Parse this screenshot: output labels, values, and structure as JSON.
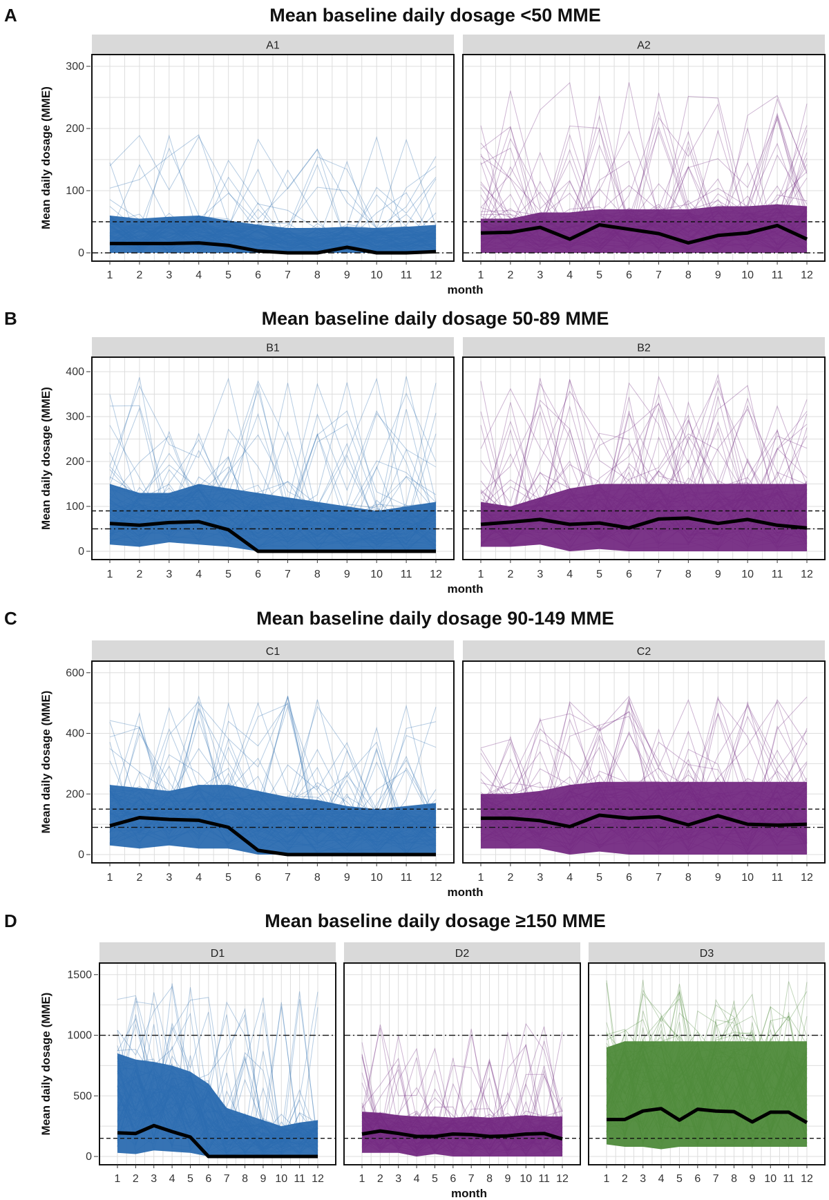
{
  "chart_data": [
    {
      "type": "line",
      "section_letter": "A",
      "title": "Mean baseline daily dosage <50 MME",
      "xlabel": "month",
      "ylabel": "Mean daily dosage (MME)",
      "x": [
        1,
        2,
        3,
        4,
        5,
        6,
        7,
        8,
        9,
        10,
        11,
        12
      ],
      "ylim": [
        0,
        310
      ],
      "yticks": [
        0,
        100,
        200,
        300
      ],
      "reference_lines": [
        {
          "y": 50,
          "style": "dashed"
        },
        {
          "y": 0,
          "style": "dotdash"
        }
      ],
      "panels": [
        {
          "label": "A1",
          "color": "#2b6cb0",
          "band_upper": [
            60,
            55,
            58,
            60,
            52,
            45,
            40,
            40,
            42,
            40,
            42,
            45
          ],
          "band_lower": [
            0,
            0,
            0,
            0,
            0,
            0,
            0,
            0,
            0,
            0,
            0,
            0
          ],
          "spike_max": 190,
          "mean": [
            15,
            15,
            15,
            16,
            12,
            3,
            0,
            0,
            9,
            0,
            0,
            2
          ]
        },
        {
          "label": "A2",
          "color": "#742a82",
          "band_upper": [
            55,
            55,
            65,
            65,
            70,
            70,
            70,
            70,
            75,
            75,
            78,
            75
          ],
          "band_lower": [
            0,
            0,
            0,
            0,
            0,
            0,
            0,
            0,
            0,
            0,
            0,
            0
          ],
          "spike_max": 275,
          "mean": [
            32,
            33,
            41,
            22,
            45,
            38,
            31,
            16,
            28,
            32,
            44,
            22
          ]
        }
      ]
    },
    {
      "type": "line",
      "section_letter": "B",
      "title": "Mean baseline daily dosage 50-89 MME",
      "xlabel": "month",
      "ylabel": "Mean daily dosage (MME)",
      "x": [
        1,
        2,
        3,
        4,
        5,
        6,
        7,
        8,
        9,
        10,
        11,
        12
      ],
      "ylim": [
        0,
        420
      ],
      "yticks": [
        0,
        100,
        200,
        300,
        400
      ],
      "reference_lines": [
        {
          "y": 90,
          "style": "dashed"
        },
        {
          "y": 50,
          "style": "dotdash"
        }
      ],
      "panels": [
        {
          "label": "B1",
          "color": "#2b6cb0",
          "band_upper": [
            150,
            130,
            130,
            150,
            140,
            130,
            120,
            110,
            100,
            90,
            100,
            110
          ],
          "band_lower": [
            15,
            10,
            20,
            15,
            10,
            0,
            0,
            0,
            0,
            0,
            0,
            0
          ],
          "spike_max": 395,
          "mean": [
            62,
            58,
            64,
            66,
            48,
            0,
            0,
            0,
            0,
            0,
            0,
            0
          ]
        },
        {
          "label": "B2",
          "color": "#742a82",
          "band_upper": [
            110,
            100,
            120,
            140,
            150,
            150,
            150,
            150,
            150,
            150,
            150,
            150
          ],
          "band_lower": [
            10,
            10,
            15,
            0,
            5,
            0,
            0,
            0,
            0,
            0,
            0,
            0
          ],
          "spike_max": 395,
          "mean": [
            60,
            65,
            71,
            60,
            63,
            52,
            72,
            74,
            62,
            71,
            58,
            52
          ]
        }
      ]
    },
    {
      "type": "line",
      "section_letter": "C",
      "title": "Mean baseline daily dosage 90-149 MME",
      "xlabel": "month",
      "ylabel": "Mean daily dosage (MME)",
      "x": [
        1,
        2,
        3,
        4,
        5,
        6,
        7,
        8,
        9,
        10,
        11,
        12
      ],
      "ylim": [
        0,
        620
      ],
      "yticks": [
        0,
        200,
        400,
        600
      ],
      "reference_lines": [
        {
          "y": 150,
          "style": "dashed"
        },
        {
          "y": 90,
          "style": "dotdash"
        }
      ],
      "panels": [
        {
          "label": "C1",
          "color": "#2b6cb0",
          "band_upper": [
            230,
            220,
            210,
            230,
            230,
            210,
            190,
            180,
            160,
            150,
            160,
            170
          ],
          "band_lower": [
            30,
            20,
            30,
            20,
            20,
            0,
            0,
            0,
            0,
            0,
            0,
            0
          ],
          "spike_max": 530,
          "mean": [
            95,
            122,
            116,
            113,
            90,
            14,
            0,
            0,
            0,
            0,
            0,
            0
          ]
        },
        {
          "label": "C2",
          "color": "#742a82",
          "band_upper": [
            200,
            200,
            210,
            230,
            240,
            240,
            240,
            240,
            240,
            240,
            240,
            240
          ],
          "band_lower": [
            20,
            20,
            20,
            0,
            10,
            0,
            0,
            0,
            0,
            0,
            0,
            0
          ],
          "spike_max": 530,
          "mean": [
            120,
            120,
            112,
            92,
            130,
            120,
            125,
            98,
            128,
            100,
            97,
            100
          ]
        }
      ]
    },
    {
      "type": "line",
      "section_letter": "D",
      "title": "Mean baseline daily dosage ≥150 MME",
      "xlabel": "month",
      "ylabel": "Mean daily dosage (MME)",
      "x": [
        1,
        2,
        3,
        4,
        5,
        6,
        7,
        8,
        9,
        10,
        11,
        12
      ],
      "ylim": [
        0,
        1550
      ],
      "yticks": [
        0,
        500,
        1000,
        1500
      ],
      "reference_lines": [
        {
          "y": 1000,
          "style": "dotdash"
        },
        {
          "y": 150,
          "style": "dashed"
        }
      ],
      "panels": [
        {
          "label": "D1",
          "color": "#2b6cb0",
          "band_upper": [
            850,
            800,
            780,
            750,
            700,
            600,
            400,
            350,
            300,
            250,
            280,
            300
          ],
          "band_lower": [
            30,
            20,
            50,
            40,
            30,
            0,
            0,
            0,
            0,
            0,
            0,
            0
          ],
          "spike_max": 1430,
          "mean": [
            195,
            190,
            255,
            205,
            160,
            0,
            0,
            0,
            0,
            0,
            0,
            0
          ]
        },
        {
          "label": "D2",
          "color": "#742a82",
          "band_upper": [
            370,
            360,
            340,
            330,
            330,
            320,
            330,
            320,
            330,
            340,
            330,
            330
          ],
          "band_lower": [
            30,
            30,
            30,
            0,
            20,
            0,
            0,
            0,
            0,
            0,
            0,
            0
          ],
          "spike_max": 1100,
          "mean": [
            185,
            210,
            190,
            165,
            165,
            185,
            180,
            165,
            170,
            185,
            190,
            145
          ]
        },
        {
          "label": "D3",
          "color": "#4e8a3a",
          "band_upper": [
            900,
            950,
            950,
            950,
            950,
            950,
            950,
            950,
            950,
            950,
            950,
            950
          ],
          "band_lower": [
            100,
            80,
            80,
            60,
            80,
            80,
            80,
            80,
            80,
            80,
            80,
            80
          ],
          "spike_max": 1480,
          "mean": [
            305,
            305,
            375,
            395,
            300,
            390,
            375,
            370,
            285,
            365,
            365,
            280
          ]
        }
      ]
    }
  ]
}
